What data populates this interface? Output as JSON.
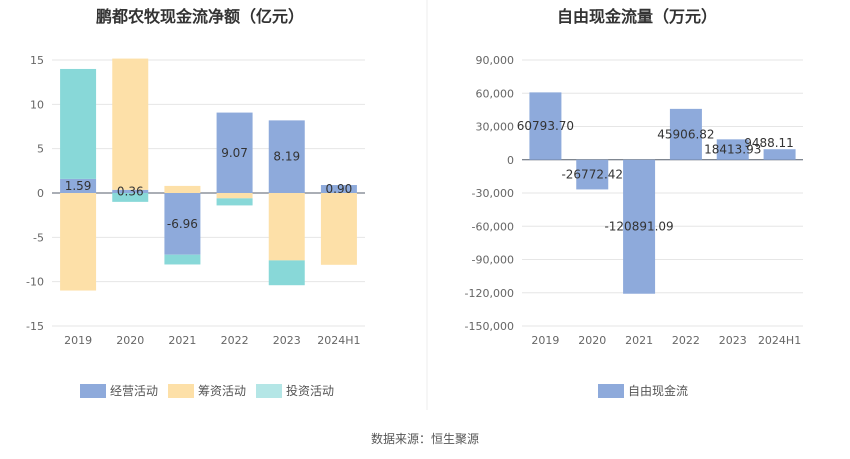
{
  "source_text": "数据来源：恒生聚源",
  "chart_data": [
    {
      "type": "bar",
      "stacked": true,
      "title": "鹏都农牧现金流净额（亿元）",
      "categories": [
        "2019",
        "2020",
        "2021",
        "2022",
        "2023",
        "2024H1"
      ],
      "ylim": [
        -15,
        15
      ],
      "yticks": [
        15,
        10,
        5,
        0,
        -5,
        -10,
        -15
      ],
      "grid": true,
      "legend_position": "bottom",
      "series": [
        {
          "name": "经营活动",
          "color": "#8eaadb",
          "values": [
            1.59,
            0.36,
            -6.96,
            9.07,
            8.19,
            0.9
          ],
          "labels": [
            "1.59",
            "0.36",
            "-6.96",
            "9.07",
            "8.19",
            "0.90"
          ]
        },
        {
          "name": "筹资活动",
          "color": "#fde0a8",
          "values": [
            -11.0,
            14.8,
            0.8,
            -0.6,
            -7.6,
            -8.1
          ]
        },
        {
          "name": "投资活动",
          "color": "#88d8d8",
          "values": [
            12.4,
            -1.0,
            -1.1,
            -0.8,
            -2.8,
            0.0
          ]
        }
      ]
    },
    {
      "type": "bar",
      "title": "自由现金流量（万元）",
      "categories": [
        "2019",
        "2020",
        "2021",
        "2022",
        "2023",
        "2024H1"
      ],
      "ylim": [
        -150000,
        90000
      ],
      "yticks": [
        90000,
        60000,
        30000,
        0,
        -30000,
        -60000,
        -90000,
        -120000,
        -150000
      ],
      "ytick_labels": [
        "90,000",
        "60,000",
        "30,000",
        "0",
        "-30,000",
        "-60,000",
        "-90,000",
        "-120,000",
        "-150,000"
      ],
      "grid": true,
      "legend_position": "bottom",
      "series": [
        {
          "name": "自由现金流",
          "color": "#8eaadb",
          "values": [
            60793.7,
            -26772.42,
            -120891.09,
            45906.82,
            18413.93,
            9488.11
          ],
          "labels": [
            "60793.70",
            "-26772.42",
            "-120891.09",
            "45906.82",
            "18413.93",
            "9488.11"
          ]
        }
      ]
    }
  ]
}
